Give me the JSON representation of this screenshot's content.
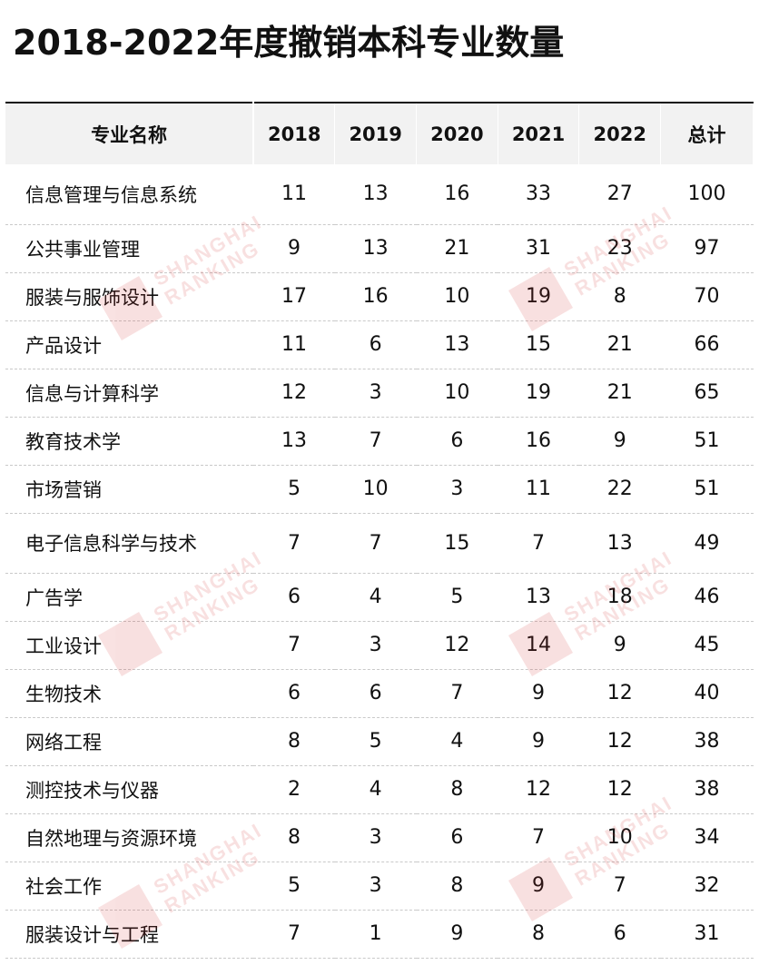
{
  "chart_data": {
    "type": "table",
    "title": "2018-2022年度撤销本科专业数量",
    "columns": [
      "专业名称",
      "2018",
      "2019",
      "2020",
      "2021",
      "2022",
      "总计"
    ],
    "rows": [
      [
        "信息管理与信息系统",
        "11",
        "13",
        "16",
        "33",
        "27",
        "100"
      ],
      [
        "公共事业管理",
        "9",
        "13",
        "21",
        "31",
        "23",
        "97"
      ],
      [
        "服装与服饰设计",
        "17",
        "16",
        "10",
        "19",
        "8",
        "70"
      ],
      [
        "产品设计",
        "11",
        "6",
        "13",
        "15",
        "21",
        "66"
      ],
      [
        "信息与计算科学",
        "12",
        "3",
        "10",
        "19",
        "21",
        "65"
      ],
      [
        "教育技术学",
        "13",
        "7",
        "6",
        "16",
        "9",
        "51"
      ],
      [
        "市场营销",
        "5",
        "10",
        "3",
        "11",
        "22",
        "51"
      ],
      [
        "电子信息科学与技术",
        "7",
        "7",
        "15",
        "7",
        "13",
        "49"
      ],
      [
        "广告学",
        "6",
        "4",
        "5",
        "13",
        "18",
        "46"
      ],
      [
        "工业设计",
        "7",
        "3",
        "12",
        "14",
        "9",
        "45"
      ],
      [
        "生物技术",
        "6",
        "6",
        "7",
        "9",
        "12",
        "40"
      ],
      [
        "网络工程",
        "8",
        "5",
        "4",
        "9",
        "12",
        "38"
      ],
      [
        "测控技术与仪器",
        "2",
        "4",
        "8",
        "12",
        "12",
        "38"
      ],
      [
        "自然地理与资源环境",
        "8",
        "3",
        "6",
        "7",
        "10",
        "34"
      ],
      [
        "社会工作",
        "5",
        "3",
        "8",
        "9",
        "7",
        "32"
      ],
      [
        "服装设计与工程",
        "7",
        "1",
        "9",
        "8",
        "6",
        "31"
      ]
    ]
  },
  "watermark": {
    "line1": "SHANGHAI",
    "line2": "RANKING"
  },
  "colors": {
    "header_bg": "#f2f2f2",
    "watermark": "#d32f2f"
  }
}
